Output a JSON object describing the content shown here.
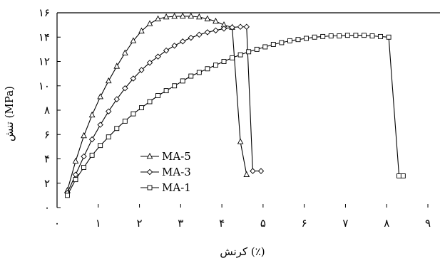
{
  "chart_data": {
    "type": "line",
    "title": "",
    "xlabel": "کرنش (٪)",
    "ylabel": "تنش (MPa)",
    "xlim": [
      0,
      9
    ],
    "ylim": [
      0,
      16
    ],
    "x_ticks": [
      0,
      1,
      2,
      3,
      4,
      5,
      6,
      7,
      8,
      9
    ],
    "x_tick_labels": [
      "۰",
      "۱",
      "۲",
      "۳",
      "۴",
      "۵",
      "۶",
      "۷",
      "۸",
      "۹"
    ],
    "y_ticks": [
      0,
      2,
      4,
      6,
      8,
      10,
      12,
      14,
      16
    ],
    "y_tick_labels": [
      "۰",
      "۲",
      "۴",
      "۶",
      "۸",
      "۱۰",
      "۱۲",
      "۱۴",
      "۱۶"
    ],
    "grid": false,
    "legend_position": "bottom-left",
    "series": [
      {
        "name": "MA-5",
        "marker": "triangle",
        "x": [
          0.25,
          0.45,
          0.65,
          0.85,
          1.05,
          1.25,
          1.45,
          1.65,
          1.85,
          2.05,
          2.25,
          2.45,
          2.65,
          2.85,
          3.05,
          3.25,
          3.45,
          3.65,
          3.85,
          4.05,
          4.25,
          4.45,
          4.6
        ],
        "y": [
          1.4,
          3.8,
          5.9,
          7.6,
          9.1,
          10.4,
          11.6,
          12.7,
          13.7,
          14.5,
          15.1,
          15.5,
          15.65,
          15.7,
          15.72,
          15.72,
          15.65,
          15.5,
          15.3,
          15.0,
          14.8,
          5.4,
          2.7
        ]
      },
      {
        "name": "MA-3",
        "marker": "diamond",
        "x": [
          0.25,
          0.45,
          0.65,
          0.85,
          1.05,
          1.25,
          1.45,
          1.65,
          1.85,
          2.05,
          2.25,
          2.45,
          2.65,
          2.85,
          3.05,
          3.25,
          3.45,
          3.65,
          3.85,
          4.05,
          4.25,
          4.45,
          4.6,
          4.75,
          4.95
        ],
        "y": [
          1.2,
          2.7,
          4.2,
          5.6,
          6.8,
          7.9,
          8.9,
          9.8,
          10.6,
          11.3,
          11.9,
          12.4,
          12.9,
          13.3,
          13.65,
          13.95,
          14.2,
          14.4,
          14.55,
          14.7,
          14.8,
          14.85,
          14.85,
          3.0,
          3.0
        ]
      },
      {
        "name": "MA-1",
        "marker": "square",
        "x": [
          0.25,
          0.45,
          0.65,
          0.85,
          1.05,
          1.25,
          1.45,
          1.65,
          1.85,
          2.05,
          2.25,
          2.45,
          2.65,
          2.85,
          3.05,
          3.25,
          3.45,
          3.65,
          3.85,
          4.05,
          4.25,
          4.45,
          4.65,
          4.85,
          5.05,
          5.25,
          5.45,
          5.65,
          5.85,
          6.05,
          6.25,
          6.45,
          6.65,
          6.85,
          7.05,
          7.25,
          7.45,
          7.65,
          7.85,
          8.05,
          8.3,
          8.4
        ],
        "y": [
          1.0,
          2.3,
          3.3,
          4.3,
          5.1,
          5.8,
          6.5,
          7.1,
          7.7,
          8.2,
          8.7,
          9.2,
          9.6,
          10.0,
          10.4,
          10.8,
          11.1,
          11.4,
          11.7,
          12.0,
          12.3,
          12.55,
          12.8,
          13.0,
          13.2,
          13.4,
          13.55,
          13.7,
          13.8,
          13.9,
          14.0,
          14.05,
          14.1,
          14.1,
          14.15,
          14.15,
          14.15,
          14.1,
          14.05,
          14.0,
          2.6,
          2.6
        ]
      }
    ]
  }
}
